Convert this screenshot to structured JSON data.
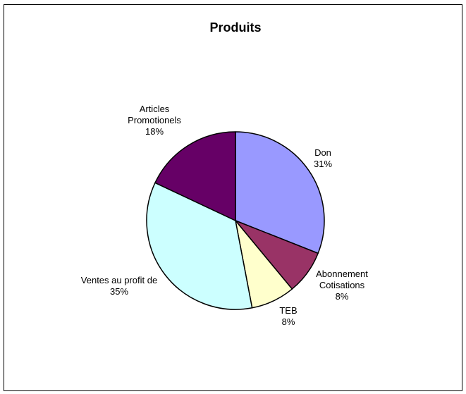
{
  "chart_data": {
    "type": "pie",
    "title": "Produits",
    "slices": [
      {
        "label_lines": [
          "Don"
        ],
        "percent_label": "31%",
        "value": 31,
        "color": "#9999FF"
      },
      {
        "label_lines": [
          "Abonnement",
          "Cotisations"
        ],
        "percent_label": "8%",
        "value": 8,
        "color": "#993366"
      },
      {
        "label_lines": [
          "TEB"
        ],
        "percent_label": "8%",
        "value": 8,
        "color": "#FFFFCC"
      },
      {
        "label_lines": [
          "Ventes au profit de"
        ],
        "percent_label": "35%",
        "value": 35,
        "color": "#CCFFFF"
      },
      {
        "label_lines": [
          "Articles",
          "Promotionels"
        ],
        "percent_label": "18%",
        "value": 18,
        "color": "#660066"
      }
    ],
    "start_direction": "top",
    "direction": "clockwise",
    "slice_border_color": "#000000",
    "legend": "none"
  }
}
